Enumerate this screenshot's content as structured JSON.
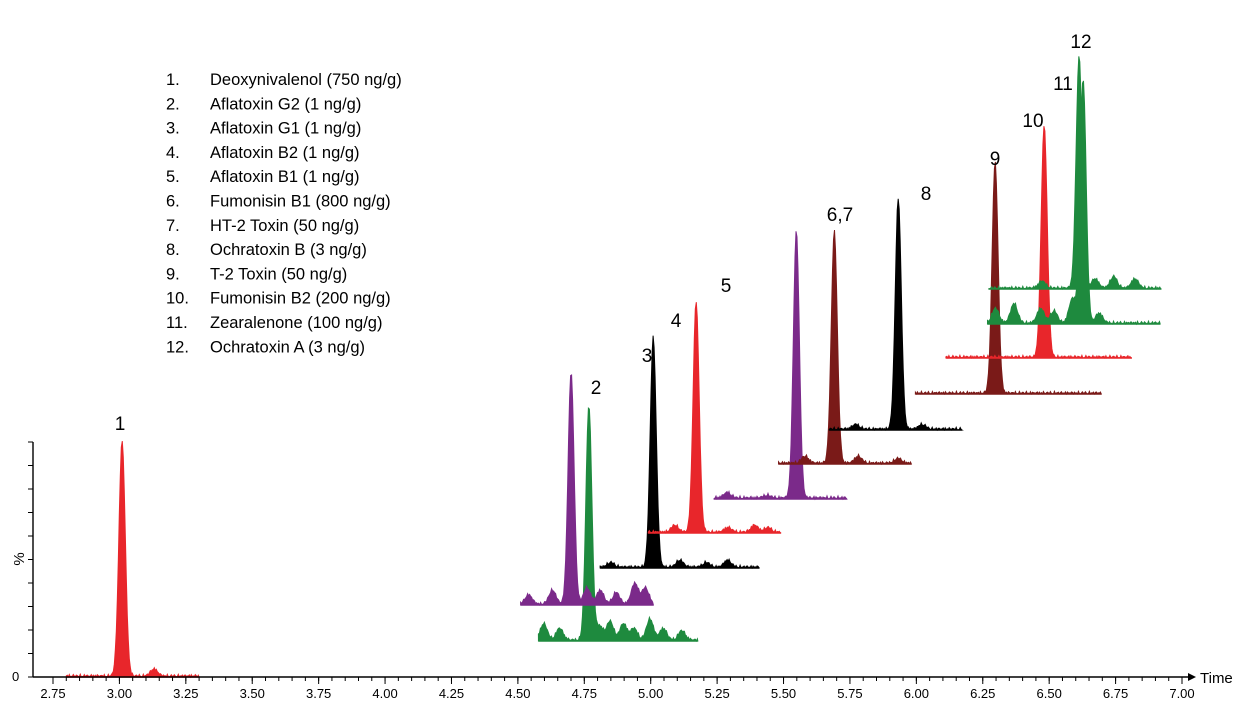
{
  "chart_data": {
    "type": "line",
    "title": "",
    "xlabel": "Time",
    "ylabel": "%",
    "xlim": [
      2.7,
      7.0
    ],
    "xticks": [
      2.75,
      3.0,
      3.25,
      3.5,
      3.75,
      4.0,
      4.25,
      4.5,
      4.75,
      5.0,
      5.25,
      5.5,
      5.75,
      6.0,
      6.25,
      6.5,
      6.75,
      7.0
    ],
    "xtick_labels": [
      "2.75",
      "3.00",
      "3.25",
      "3.50",
      "3.75",
      "4.00",
      "4.25",
      "4.50",
      "4.75",
      "5.00",
      "5.25",
      "5.50",
      "5.75",
      "6.00",
      "6.25",
      "6.50",
      "6.75",
      "7.00"
    ],
    "ylim": [
      0,
      100
    ],
    "ytick_labels": [
      "0"
    ],
    "grid": false,
    "legend": {
      "placement": "top-left",
      "numbers": [
        "1.",
        "2.",
        "3.",
        "4.",
        "5.",
        "6.",
        "7.",
        "8.",
        "9.",
        "10.",
        "11.",
        "12."
      ],
      "entries": [
        "Deoxynivalenol (750 ng/g)",
        "Aflatoxin G2 (1 ng/g)",
        "Aflatoxin G1 (1 ng/g)",
        "Aflatoxin B2 (1 ng/g)",
        "Aflatoxin B1 (1 ng/g)",
        "Fumonisin B1 (800 ng/g)",
        "HT-2 Toxin (50 ng/g)",
        "Ochratoxin B (3 ng/g)",
        "T-2 Toxin (50 ng/g)",
        "Fumonisin B2 (200 ng/g)",
        "Zearalenone (100 ng/g)",
        "Ochratoxin A (3 ng/g)"
      ]
    },
    "series": [
      {
        "label": "1",
        "color": "#e8262b",
        "fill": true,
        "rt": 3.01,
        "x_range": [
          2.8,
          3.3
        ],
        "peak_width": 0.012,
        "noise": [
          [
            3.13,
            0.03
          ]
        ]
      },
      {
        "label": "2",
        "color": "#1e8a3e",
        "fill": true,
        "rt": 4.79,
        "x_range": [
          4.6,
          5.2
        ],
        "peak_width": 0.01,
        "noise": [
          [
            4.62,
            0.07
          ],
          [
            4.68,
            0.05
          ],
          [
            4.83,
            0.06
          ],
          [
            4.87,
            0.08
          ],
          [
            4.92,
            0.07
          ],
          [
            4.96,
            0.05
          ],
          [
            5.02,
            0.09
          ],
          [
            5.07,
            0.05
          ],
          [
            5.14,
            0.04
          ]
        ]
      },
      {
        "label": "3",
        "color": "#7b2a8a",
        "fill": true,
        "rt": 4.99,
        "x_range": [
          4.8,
          5.3
        ],
        "peak_width": 0.01,
        "noise": [
          [
            4.83,
            0.04
          ],
          [
            4.92,
            0.06
          ],
          [
            5.05,
            0.07
          ],
          [
            5.1,
            0.06
          ],
          [
            5.16,
            0.05
          ],
          [
            5.23,
            0.09
          ],
          [
            5.27,
            0.07
          ]
        ]
      },
      {
        "label": "4",
        "color": "#000000",
        "fill": true,
        "rt": 5.1,
        "x_range": [
          4.9,
          5.5
        ],
        "peak_width": 0.01,
        "noise": [
          [
            4.94,
            0.02
          ],
          [
            5.2,
            0.03
          ],
          [
            5.3,
            0.02
          ],
          [
            5.38,
            0.03
          ]
        ]
      },
      {
        "label": "5",
        "color": "#e8262b",
        "fill": true,
        "rt": 5.28,
        "x_range": [
          5.1,
          5.6
        ],
        "peak_width": 0.01,
        "noise": [
          [
            5.2,
            0.03
          ],
          [
            5.4,
            0.02
          ],
          [
            5.5,
            0.03
          ],
          [
            5.55,
            0.02
          ]
        ]
      },
      {
        "label": "6,7",
        "color": "#7b2a8a",
        "fill": true,
        "rt": 5.71,
        "x_range": [
          5.4,
          5.9
        ],
        "peak_width": 0.01,
        "noise": [
          [
            5.45,
            0.02
          ],
          [
            5.6,
            0.01
          ]
        ]
      },
      {
        "label": "6,7",
        "color": "#7a1a18",
        "fill": true,
        "rt": 5.71,
        "x_range": [
          5.5,
          6.0
        ],
        "peak_width": 0.01,
        "noise": [
          [
            5.6,
            0.03
          ],
          [
            5.8,
            0.03
          ],
          [
            5.95,
            0.02
          ]
        ]
      },
      {
        "label": "8",
        "color": "#000000",
        "fill": true,
        "rt": 6.06,
        "x_range": [
          5.8,
          6.3
        ],
        "peak_width": 0.01,
        "noise": [
          [
            5.9,
            0.02
          ],
          [
            6.15,
            0.02
          ]
        ]
      },
      {
        "label": "9",
        "color": "#7a1a18",
        "fill": true,
        "rt": 6.3,
        "x_range": [
          6.0,
          6.7
        ],
        "peak_width": 0.01,
        "noise": []
      },
      {
        "label": "10",
        "color": "#e8262b",
        "fill": true,
        "rt": 6.47,
        "x_range": [
          6.1,
          6.8
        ],
        "peak_width": 0.01,
        "noise": []
      },
      {
        "label": "11",
        "color": "#1e8a3e",
        "fill": true,
        "rt": 6.56,
        "x_range": [
          6.2,
          6.85
        ],
        "peak_width": 0.01,
        "noise": [
          [
            6.23,
            0.06
          ],
          [
            6.3,
            0.08
          ],
          [
            6.4,
            0.06
          ],
          [
            6.45,
            0.05
          ],
          [
            6.52,
            0.1
          ],
          [
            6.62,
            0.04
          ]
        ]
      },
      {
        "label": "12",
        "color": "#1e8a3e",
        "fill": true,
        "rt": 6.59,
        "x_range": [
          6.25,
          6.9
        ],
        "peak_width": 0.01,
        "noise": [
          [
            6.45,
            0.03
          ],
          [
            6.65,
            0.04
          ],
          [
            6.72,
            0.05
          ],
          [
            6.8,
            0.04
          ]
        ]
      }
    ]
  }
}
